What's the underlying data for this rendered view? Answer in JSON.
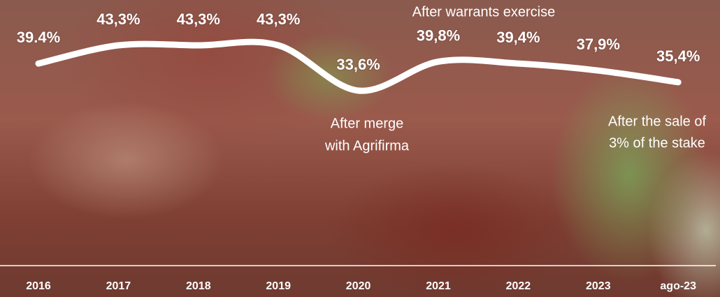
{
  "chart_data": {
    "type": "line",
    "categories": [
      "2016",
      "2017",
      "2018",
      "2019",
      "2020",
      "2021",
      "2022",
      "2023",
      "ago-23"
    ],
    "values": [
      39.4,
      43.3,
      43.3,
      43.3,
      33.6,
      39.8,
      39.4,
      37.9,
      35.4
    ],
    "value_labels": [
      "39.4%",
      "43,3%",
      "43,3%",
      "43,3%",
      "33,6%",
      "39,8%",
      "39,4%",
      "37,9%",
      "35,4%"
    ],
    "color": "#ffffff",
    "annotations": [
      {
        "lines": [
          "After warrants exercise"
        ]
      },
      {
        "lines": [
          "After merge",
          "with Agrifirma"
        ]
      },
      {
        "lines": [
          "After the sale of",
          "3% of the stake"
        ]
      }
    ]
  }
}
